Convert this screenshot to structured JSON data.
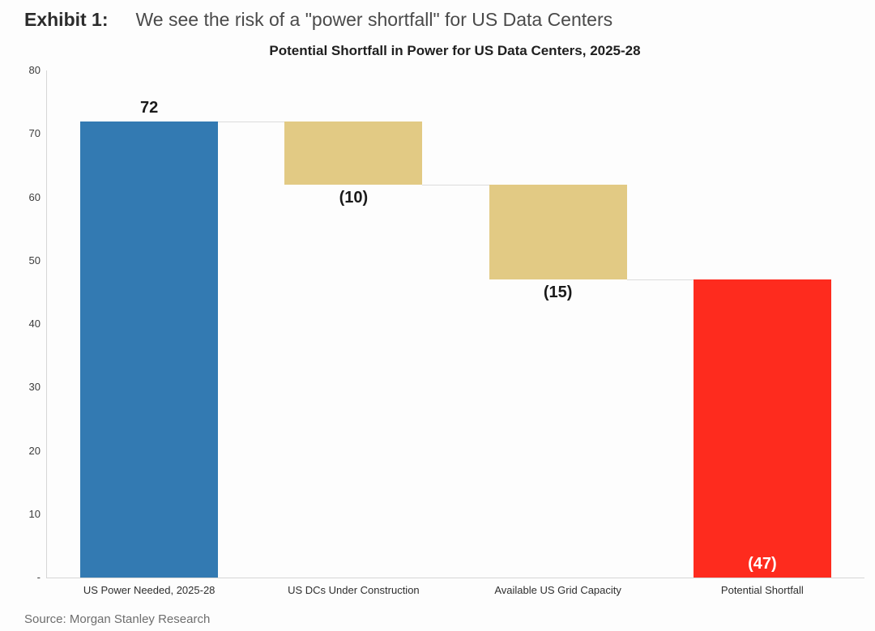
{
  "header": {
    "exhibit_label": "Exhibit 1:",
    "title": "We see the risk of a \"power shortfall\" for US Data Centers"
  },
  "source": "Source: Morgan Stanley Research",
  "chart_data": {
    "type": "bar",
    "subtype": "waterfall",
    "title": "Potential Shortfall in Power for US Data Centers, 2025-28",
    "xlabel": "",
    "ylabel": "",
    "ylim": [
      0,
      80
    ],
    "grid": false,
    "legend": false,
    "categories": [
      "US Power Needed, 2025-28",
      "US DCs Under Construction",
      "Available US Grid Capacity",
      "Potential Shortfall"
    ],
    "bars": [
      {
        "label": "US Power Needed, 2025-28",
        "value": 72,
        "start": 0,
        "end": 72,
        "value_label": "72",
        "color": "#337ab2",
        "label_position": "above",
        "label_color": "#1a1a1a"
      },
      {
        "label": "US DCs Under Construction",
        "value": -10,
        "start": 72,
        "end": 62,
        "value_label": "(10)",
        "color": "#e2ca84",
        "label_position": "below",
        "label_color": "#1a1a1a"
      },
      {
        "label": "Available US Grid Capacity",
        "value": -15,
        "start": 62,
        "end": 47,
        "value_label": "(15)",
        "color": "#e2ca84",
        "label_position": "below",
        "label_color": "#1a1a1a"
      },
      {
        "label": "Potential Shortfall",
        "value": -47,
        "start": 47,
        "end": 0,
        "value_label": "(47)",
        "color": "#fe2b1e",
        "label_position": "inside-bottom",
        "label_color": "#ffffff"
      }
    ],
    "y_ticks": [
      {
        "value": 80,
        "label": "80"
      },
      {
        "value": 70,
        "label": "70"
      },
      {
        "value": 60,
        "label": "60"
      },
      {
        "value": 50,
        "label": "50"
      },
      {
        "value": 40,
        "label": "40"
      },
      {
        "value": 30,
        "label": "30"
      },
      {
        "value": 20,
        "label": "20"
      },
      {
        "value": 10,
        "label": "10"
      },
      {
        "value": 0,
        "label": "-"
      }
    ],
    "axis_color": "#d6d6d6",
    "connector_color": "#dcdcdc"
  }
}
